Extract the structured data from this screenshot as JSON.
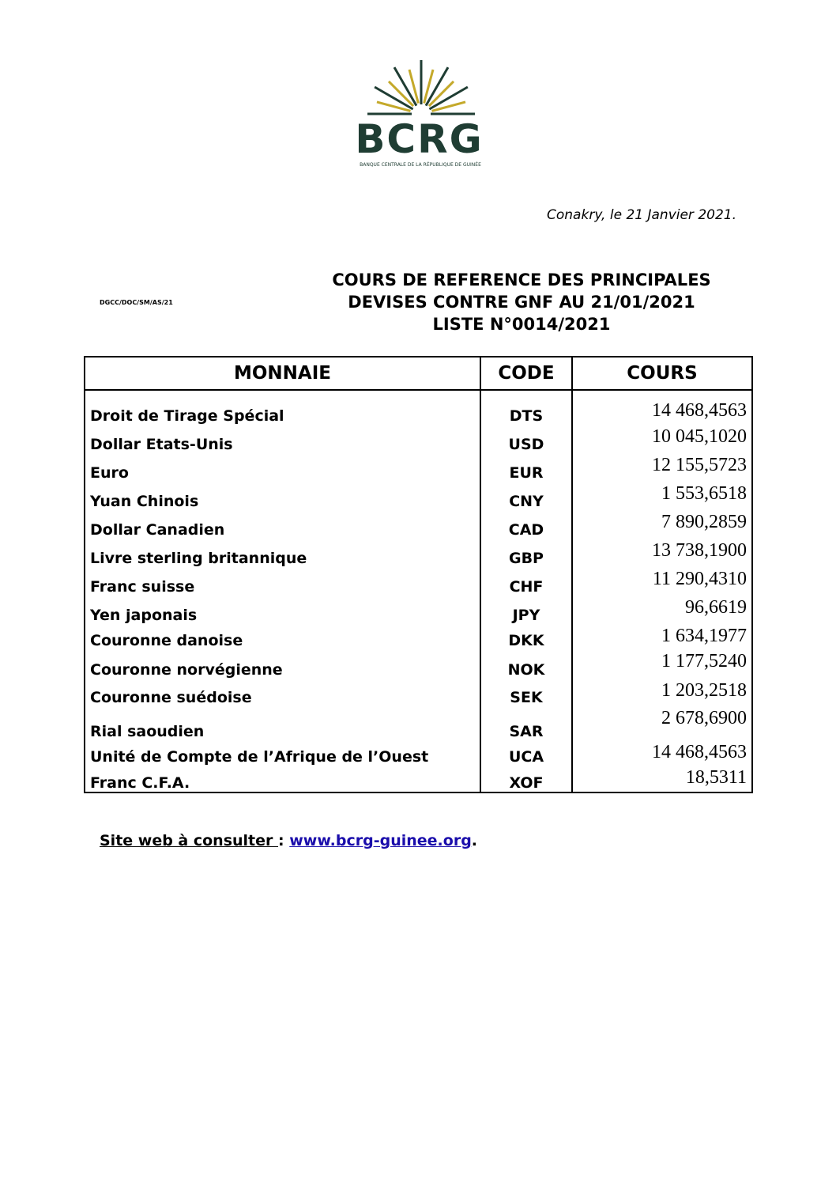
{
  "logo": {
    "text": "BCRG",
    "subtitle": "BANQUE CENTRALE DE LA RÉPUBLIQUE DE GUINÉE",
    "colors": {
      "green": "#1f3d33",
      "gold": "#c4a92a"
    }
  },
  "date_line": "Conakry, le 21 Janvier 2021.",
  "reference": "DGCC/DOC/SM/AS/21",
  "title_lines": [
    "COURS DE REFERENCE DES PRINCIPALES",
    "DEVISES CONTRE GNF AU  21/01/2021",
    "LISTE N°0014/2021"
  ],
  "table": {
    "headers": [
      "MONNAIE",
      "CODE",
      "COURS"
    ],
    "rows": [
      {
        "name": "Droit de Tirage Spécial",
        "code": "DTS",
        "rate": "14 468,4563"
      },
      {
        "name": "Dollar Etats-Unis",
        "code": "USD",
        "rate": "10 045,1020"
      },
      {
        "name": "Euro",
        "code": "EUR",
        "rate": "12 155,5723"
      },
      {
        "name": "Yuan Chinois",
        "code": "CNY",
        "rate": "1 553,6518"
      },
      {
        "name": "Dollar Canadien",
        "code": "CAD",
        "rate": "7 890,2859"
      },
      {
        "name": "Livre sterling britannique",
        "code": "GBP",
        "rate": "13 738,1900"
      },
      {
        "name": "Franc suisse",
        "code": "CHF",
        "rate": "11 290,4310"
      },
      {
        "name": "Yen japonais",
        "code": "JPY",
        "rate": "96,6619"
      },
      {
        "name": "Couronne danoise",
        "code": "DKK",
        "rate": "1 634,1977"
      },
      {
        "name": "Couronne norvégienne",
        "code": "NOK",
        "rate": "1 177,5240"
      },
      {
        "name": "Couronne suédoise",
        "code": "SEK",
        "rate": "1 203,2518"
      },
      {
        "name": "Rial saoudien",
        "code": "SAR",
        "rate": "2 678,6900"
      },
      {
        "name": "Unité de Compte de l’Afrique de l’Ouest",
        "code": "UCA",
        "rate": "14 468,4563"
      },
      {
        "name": "Franc C.F.A.",
        "code": "XOF",
        "rate": "18,5311"
      }
    ]
  },
  "footer": {
    "label": "Site web à consulter ",
    "colon": ": ",
    "link": "www.bcrg-guinee.org",
    "end": "."
  }
}
